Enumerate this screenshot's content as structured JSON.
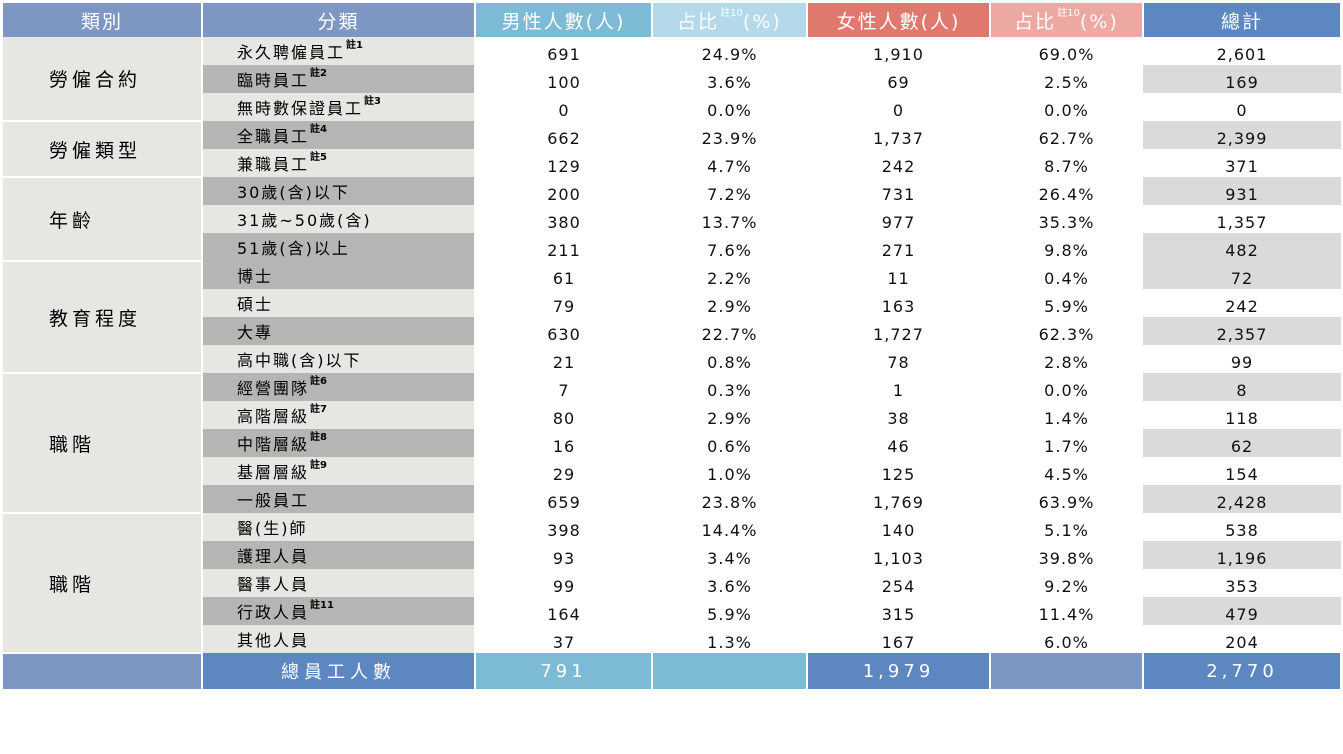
{
  "headers": {
    "category": "類別",
    "subcategory": "分類",
    "male": "男性人數(人)",
    "male_pct": "占比",
    "male_pct_note": "註10",
    "male_pct_unit": "(%)",
    "female": "女性人數(人)",
    "female_pct": "占比",
    "female_pct_note": "註10",
    "female_pct_unit": "(%)",
    "total": "總計"
  },
  "groups": [
    {
      "category": "勞僱合約",
      "rows": [
        {
          "label": "永久聘僱員工",
          "note": "註1",
          "male": "691",
          "male_pct": "24.9%",
          "female": "1,910",
          "female_pct": "69.0%",
          "total": "2,601",
          "shade": "light"
        },
        {
          "label": "臨時員工",
          "note": "註2",
          "male": "100",
          "male_pct": "3.6%",
          "female": "69",
          "female_pct": "2.5%",
          "total": "169",
          "shade": "dark"
        },
        {
          "label": "無時數保證員工",
          "note": "註3",
          "male": "0",
          "male_pct": "0.0%",
          "female": "0",
          "female_pct": "0.0%",
          "total": "0",
          "shade": "light"
        }
      ]
    },
    {
      "category": "勞僱類型",
      "rows": [
        {
          "label": "全職員工",
          "note": "註4",
          "male": "662",
          "male_pct": "23.9%",
          "female": "1,737",
          "female_pct": "62.7%",
          "total": "2,399",
          "shade": "dark"
        },
        {
          "label": "兼職員工",
          "note": "註5",
          "male": "129",
          "male_pct": "4.7%",
          "female": "242",
          "female_pct": "8.7%",
          "total": "371",
          "shade": "light"
        }
      ]
    },
    {
      "category": "年齡",
      "rows": [
        {
          "label": "30歲(含)以下",
          "note": "",
          "male": "200",
          "male_pct": "7.2%",
          "female": "731",
          "female_pct": "26.4%",
          "total": "931",
          "shade": "dark"
        },
        {
          "label": "31歲~50歲(含)",
          "note": "",
          "male": "380",
          "male_pct": "13.7%",
          "female": "977",
          "female_pct": "35.3%",
          "total": "1,357",
          "shade": "light"
        },
        {
          "label": "51歲(含)以上",
          "note": "",
          "male": "211",
          "male_pct": "7.6%",
          "female": "271",
          "female_pct": "9.8%",
          "total": "482",
          "shade": "dark"
        }
      ]
    },
    {
      "category": "教育程度",
      "rows": [
        {
          "label": "博士",
          "note": "",
          "male": "61",
          "male_pct": "2.2%",
          "female": "11",
          "female_pct": "0.4%",
          "total": "72",
          "shade": "dark"
        },
        {
          "label": "碩士",
          "note": "",
          "male": "79",
          "male_pct": "2.9%",
          "female": "163",
          "female_pct": "5.9%",
          "total": "242",
          "shade": "light"
        },
        {
          "label": "大專",
          "note": "",
          "male": "630",
          "male_pct": "22.7%",
          "female": "1,727",
          "female_pct": "62.3%",
          "total": "2,357",
          "shade": "dark"
        },
        {
          "label": "高中職(含)以下",
          "note": "",
          "male": "21",
          "male_pct": "0.8%",
          "female": "78",
          "female_pct": "2.8%",
          "total": "99",
          "shade": "light"
        }
      ]
    },
    {
      "category": "職階",
      "rows": [
        {
          "label": "經營團隊",
          "note": "註6",
          "male": "7",
          "male_pct": "0.3%",
          "female": "1",
          "female_pct": "0.0%",
          "total": "8",
          "shade": "dark"
        },
        {
          "label": "高階層級",
          "note": "註7",
          "male": "80",
          "male_pct": "2.9%",
          "female": "38",
          "female_pct": "1.4%",
          "total": "118",
          "shade": "light"
        },
        {
          "label": "中階層級",
          "note": "註8",
          "male": "16",
          "male_pct": "0.6%",
          "female": "46",
          "female_pct": "1.7%",
          "total": "62",
          "shade": "dark"
        },
        {
          "label": "基層層級",
          "note": "註9",
          "male": "29",
          "male_pct": "1.0%",
          "female": "125",
          "female_pct": "4.5%",
          "total": "154",
          "shade": "light"
        },
        {
          "label": "一般員工",
          "note": "",
          "male": "659",
          "male_pct": "23.8%",
          "female": "1,769",
          "female_pct": "63.9%",
          "total": "2,428",
          "shade": "dark"
        }
      ]
    },
    {
      "category": "職階",
      "rows": [
        {
          "label": "醫(生)師",
          "note": "",
          "male": "398",
          "male_pct": "14.4%",
          "female": "140",
          "female_pct": "5.1%",
          "total": "538",
          "shade": "light"
        },
        {
          "label": "護理人員",
          "note": "",
          "male": "93",
          "male_pct": "3.4%",
          "female": "1,103",
          "female_pct": "39.8%",
          "total": "1,196",
          "shade": "dark"
        },
        {
          "label": "醫事人員",
          "note": "",
          "male": "99",
          "male_pct": "3.6%",
          "female": "254",
          "female_pct": "9.2%",
          "total": "353",
          "shade": "light"
        },
        {
          "label": "行政人員",
          "note": "註11",
          "male": "164",
          "male_pct": "5.9%",
          "female": "315",
          "female_pct": "11.4%",
          "total": "479",
          "shade": "dark"
        },
        {
          "label": "其他人員",
          "note": "",
          "male": "37",
          "male_pct": "1.3%",
          "female": "167",
          "female_pct": "6.0%",
          "total": "204",
          "shade": "light"
        }
      ]
    }
  ],
  "footer": {
    "label": "總員工人數",
    "male": "791",
    "female": "1,979",
    "total": "2,770"
  }
}
